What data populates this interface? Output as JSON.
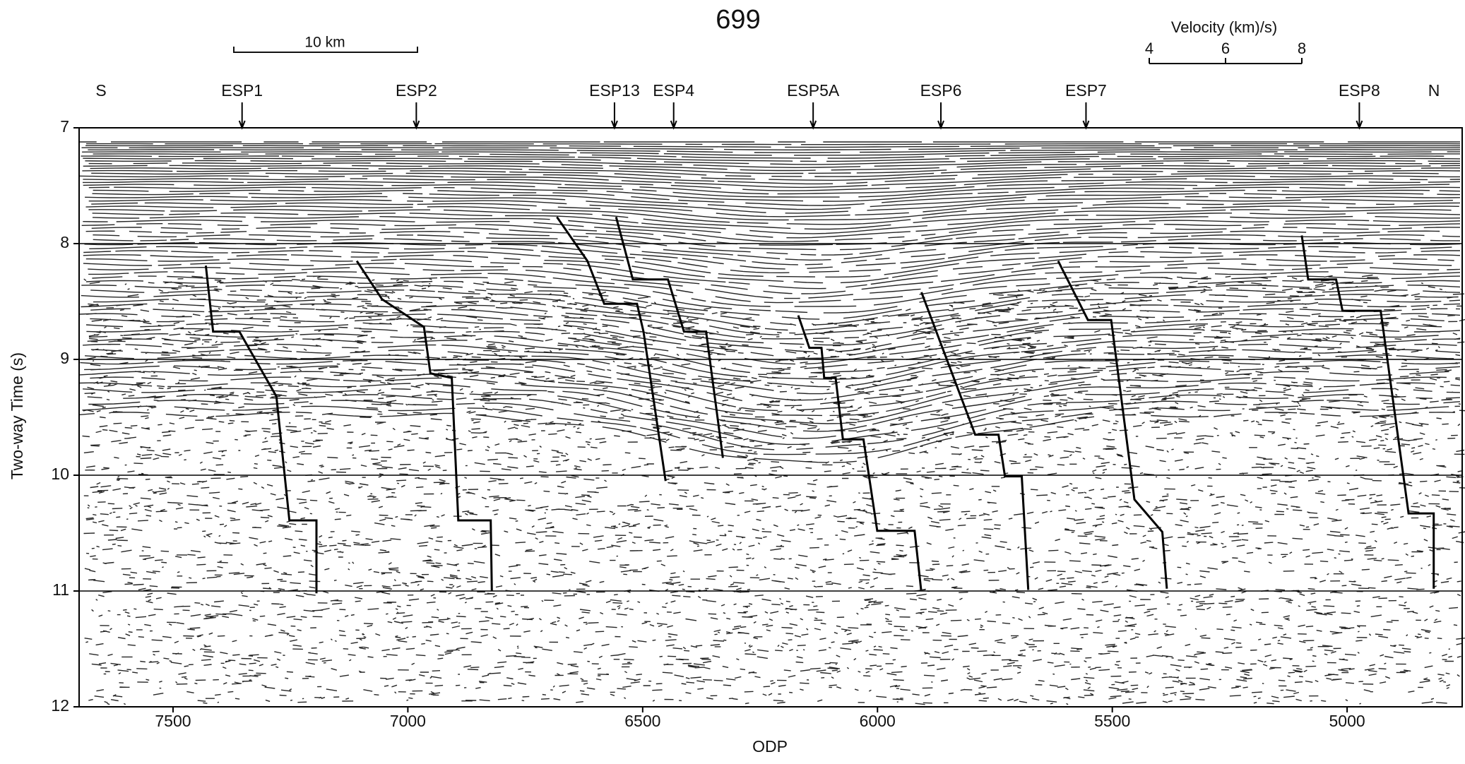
{
  "chart_data": {
    "type": "seismic",
    "title": "699",
    "x_label": "ODP",
    "y_label": "Two-way Time (s)",
    "xlim": [
      7700,
      4755
    ],
    "ylim": [
      12,
      7
    ],
    "xticks": [
      7500,
      7000,
      6500,
      6000,
      5500,
      5000
    ],
    "yticks": [
      7,
      8,
      9,
      10,
      11,
      12
    ],
    "grid": true,
    "color": "#000000",
    "end_labels": [
      "S",
      "N"
    ],
    "distance_scale": {
      "label": "10 km"
    },
    "velocity_scale": {
      "label": "Velocity (km)/s)",
      "ticks": [
        4,
        6,
        8
      ]
    },
    "series": [
      {
        "name": "ESP1",
        "position": 7353,
        "velocity": [
          4.05,
          4.24,
          4.93,
          5.9,
          6.24,
          6.95,
          6.95
        ],
        "time": [
          8.19,
          8.76,
          8.76,
          9.32,
          10.39,
          10.39,
          11.02
        ]
      },
      {
        "name": "ESP2",
        "position": 6982,
        "velocity": [
          3.44,
          4.1,
          5.2,
          5.37,
          5.93,
          6.1,
          6.95,
          6.98
        ],
        "time": [
          8.15,
          8.48,
          8.72,
          9.12,
          9.16,
          10.39,
          10.39,
          11.0
        ]
      },
      {
        "name": "ESP13",
        "position": 6560,
        "velocity": [
          3.49,
          4.29,
          4.73,
          5.59,
          5.76,
          6.34
        ],
        "time": [
          7.77,
          8.15,
          8.52,
          8.52,
          8.76,
          10.05
        ]
      },
      {
        "name": "ESP4",
        "position": 6434,
        "velocity": [
          3.49,
          3.93,
          4.85,
          5.27,
          5.85,
          6.29
        ],
        "time": [
          7.77,
          8.31,
          8.31,
          8.76,
          8.76,
          9.85
        ]
      },
      {
        "name": "ESP5A",
        "position": 6137,
        "velocity": [
          4.61,
          4.9,
          5.22,
          5.29,
          5.59,
          5.78,
          6.32,
          6.68,
          7.66,
          7.83
        ],
        "time": [
          8.62,
          8.9,
          8.9,
          9.16,
          9.16,
          9.69,
          9.69,
          10.48,
          10.48,
          10.99
        ]
      },
      {
        "name": "ESP6",
        "position": 5865,
        "velocity": [
          4.49,
          5.9,
          6.51,
          6.68,
          7.12,
          7.29
        ],
        "time": [
          8.42,
          9.65,
          9.65,
          10.01,
          10.01,
          10.99
        ]
      },
      {
        "name": "ESP7",
        "position": 5556,
        "velocity": [
          4.27,
          5.05,
          5.66,
          6.27,
          7.0,
          7.12
        ],
        "time": [
          8.15,
          8.66,
          8.66,
          10.21,
          10.49,
          10.98
        ]
      },
      {
        "name": "ESP8",
        "position": 4974,
        "velocity": [
          3.49,
          3.66,
          4.39,
          4.56,
          5.56,
          6.29,
          6.95,
          6.95
        ],
        "time": [
          7.93,
          8.31,
          8.31,
          8.58,
          8.58,
          10.33,
          10.33,
          10.98
        ]
      }
    ]
  }
}
